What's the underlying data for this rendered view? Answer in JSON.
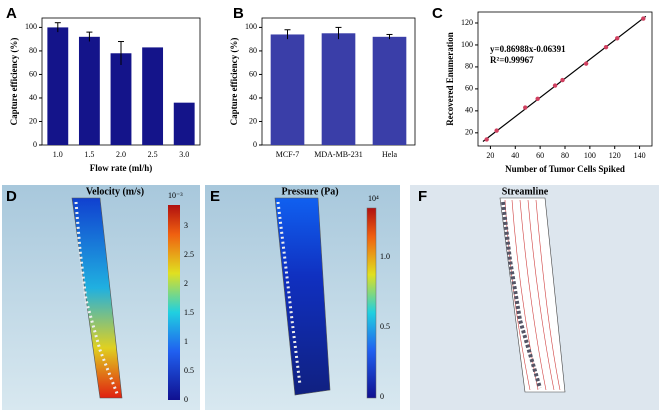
{
  "chart_data": [
    {
      "type": "bar",
      "panel": "A",
      "ylabel": "Capture efficiency (%)",
      "xlabel": "Flow rate (ml/h)",
      "categories": [
        "1.0",
        "1.5",
        "2.0",
        "2.5",
        "3.0"
      ],
      "values": [
        100,
        92,
        78,
        83,
        36
      ],
      "errors": [
        4,
        4,
        10,
        0,
        0
      ],
      "color": "#14148a",
      "ylim": [
        0,
        108
      ],
      "yticks": [
        0,
        20,
        40,
        60,
        80,
        100
      ]
    },
    {
      "type": "bar",
      "panel": "B",
      "ylabel": "Capture efficiency (%)",
      "categories": [
        "MCF-7",
        "MDA-MB-231",
        "Hela"
      ],
      "values": [
        94,
        95,
        92
      ],
      "errors": [
        4,
        5,
        2
      ],
      "color": "#3a3ea8",
      "ylim": [
        0,
        108
      ],
      "yticks": [
        0,
        20,
        40,
        60,
        80,
        100
      ]
    },
    {
      "type": "scatter",
      "panel": "C",
      "ylabel": "Recovered Enumeration",
      "xlabel": "Number of Tumor Cells Spiked",
      "x": [
        17,
        25,
        48,
        58,
        72,
        78,
        97,
        113,
        122,
        143
      ],
      "values": [
        14,
        22,
        43,
        51,
        63,
        68,
        83,
        98,
        106,
        124
      ],
      "color": "#d04060",
      "fit": {
        "slope": 0.86988,
        "intercept": -0.06391
      },
      "annotations": [
        "y=0.86988x-0.06391",
        "R²=0.99967"
      ],
      "xlim": [
        10,
        150
      ],
      "xticks": [
        20,
        40,
        60,
        80,
        100,
        120,
        140
      ],
      "ylim": [
        8,
        130
      ],
      "yticks": [
        20,
        40,
        60,
        80,
        100,
        120
      ]
    }
  ],
  "panels": [
    {
      "letter": "D",
      "title": "Velocity (m/s)",
      "exponent": "10⁻³",
      "ticks": [
        0,
        0.5,
        1,
        1.5,
        2,
        2.5,
        3
      ]
    },
    {
      "letter": "E",
      "title": "Pressure (Pa)",
      "exponent": "10⁴",
      "ticks": [
        0,
        0.5,
        {
          "value": 1,
          "label": "1.0"
        }
      ]
    },
    {
      "letter": "F",
      "title": "Streamline"
    }
  ]
}
